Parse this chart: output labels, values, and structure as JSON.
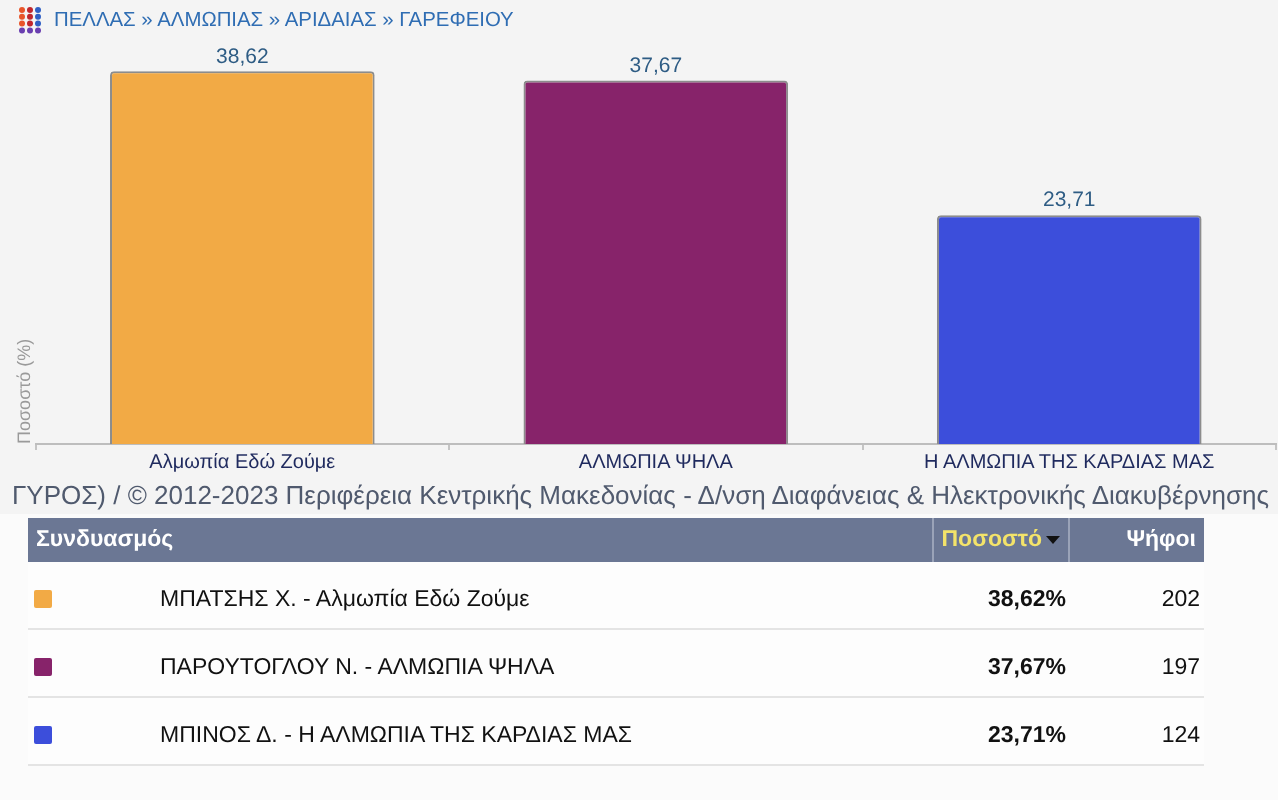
{
  "chart_data": [
    {
      "type": "bar",
      "title": "ΠΕΛΛΑΣ » ΑΛΜΩΠΙΑΣ » ΑΡΙΔΑΙΑΣ » ΓΑΡΕΦΕΙΟΥ",
      "ylabel": "Ποσοστό (%)",
      "categories": [
        "Αλμωπία Εδώ Ζούμε",
        "ΑΛΜΩΠΙΑ ΨΗΛΑ",
        "Η ΑΛΜΩΠΙΑ ΤΗΣ ΚΑΡΔΙΑΣ ΜΑΣ"
      ],
      "values": [
        38.62,
        37.67,
        23.71
      ],
      "colors": [
        "#f2aa45",
        "#87236a",
        "#3c4edb"
      ],
      "value_labels": [
        "38,62",
        "37,67",
        "23,71"
      ],
      "tick_labels": "x",
      "grid": false,
      "legend": false,
      "annotations": [
        "ΓΥΡΟΣ) / © 2012-2023 Περιφέρεια Κεντρικής Μακεδονίας - Δ/νση Διαφάνειας & Ηλεκτρονικής Διακυβέρνησης"
      ]
    },
    {
      "type": "other",
      "legend_title": "Συνδυασμός",
      "categories": [
        "ΜΠΑΤΣΗΣ Χ. - Αλμωπία Εδώ Ζούμε",
        "ΠΑΡΟΥΤΟΓΛΟΥ Ν. - ΑΛΜΩΠΙΑ ΨΗΛΑ",
        "ΜΠΙΝΟΣ Δ. - Η ΑΛΜΩΠΙΑ ΤΗΣ ΚΑΡΔΙΑΣ ΜΑΣ"
      ],
      "colors": [
        "#f2aa45",
        "#87236a",
        "#3c4edb"
      ],
      "series": [
        {
          "name": "Ποσοστό",
          "values": [
            38.62,
            37.67,
            23.71
          ],
          "value_labels": [
            "38,62%",
            "37,67%",
            "23,71%"
          ]
        },
        {
          "name": "Ψήφοι",
          "values": [
            202,
            197,
            124
          ]
        }
      ],
      "data_labels": true
    }
  ]
}
